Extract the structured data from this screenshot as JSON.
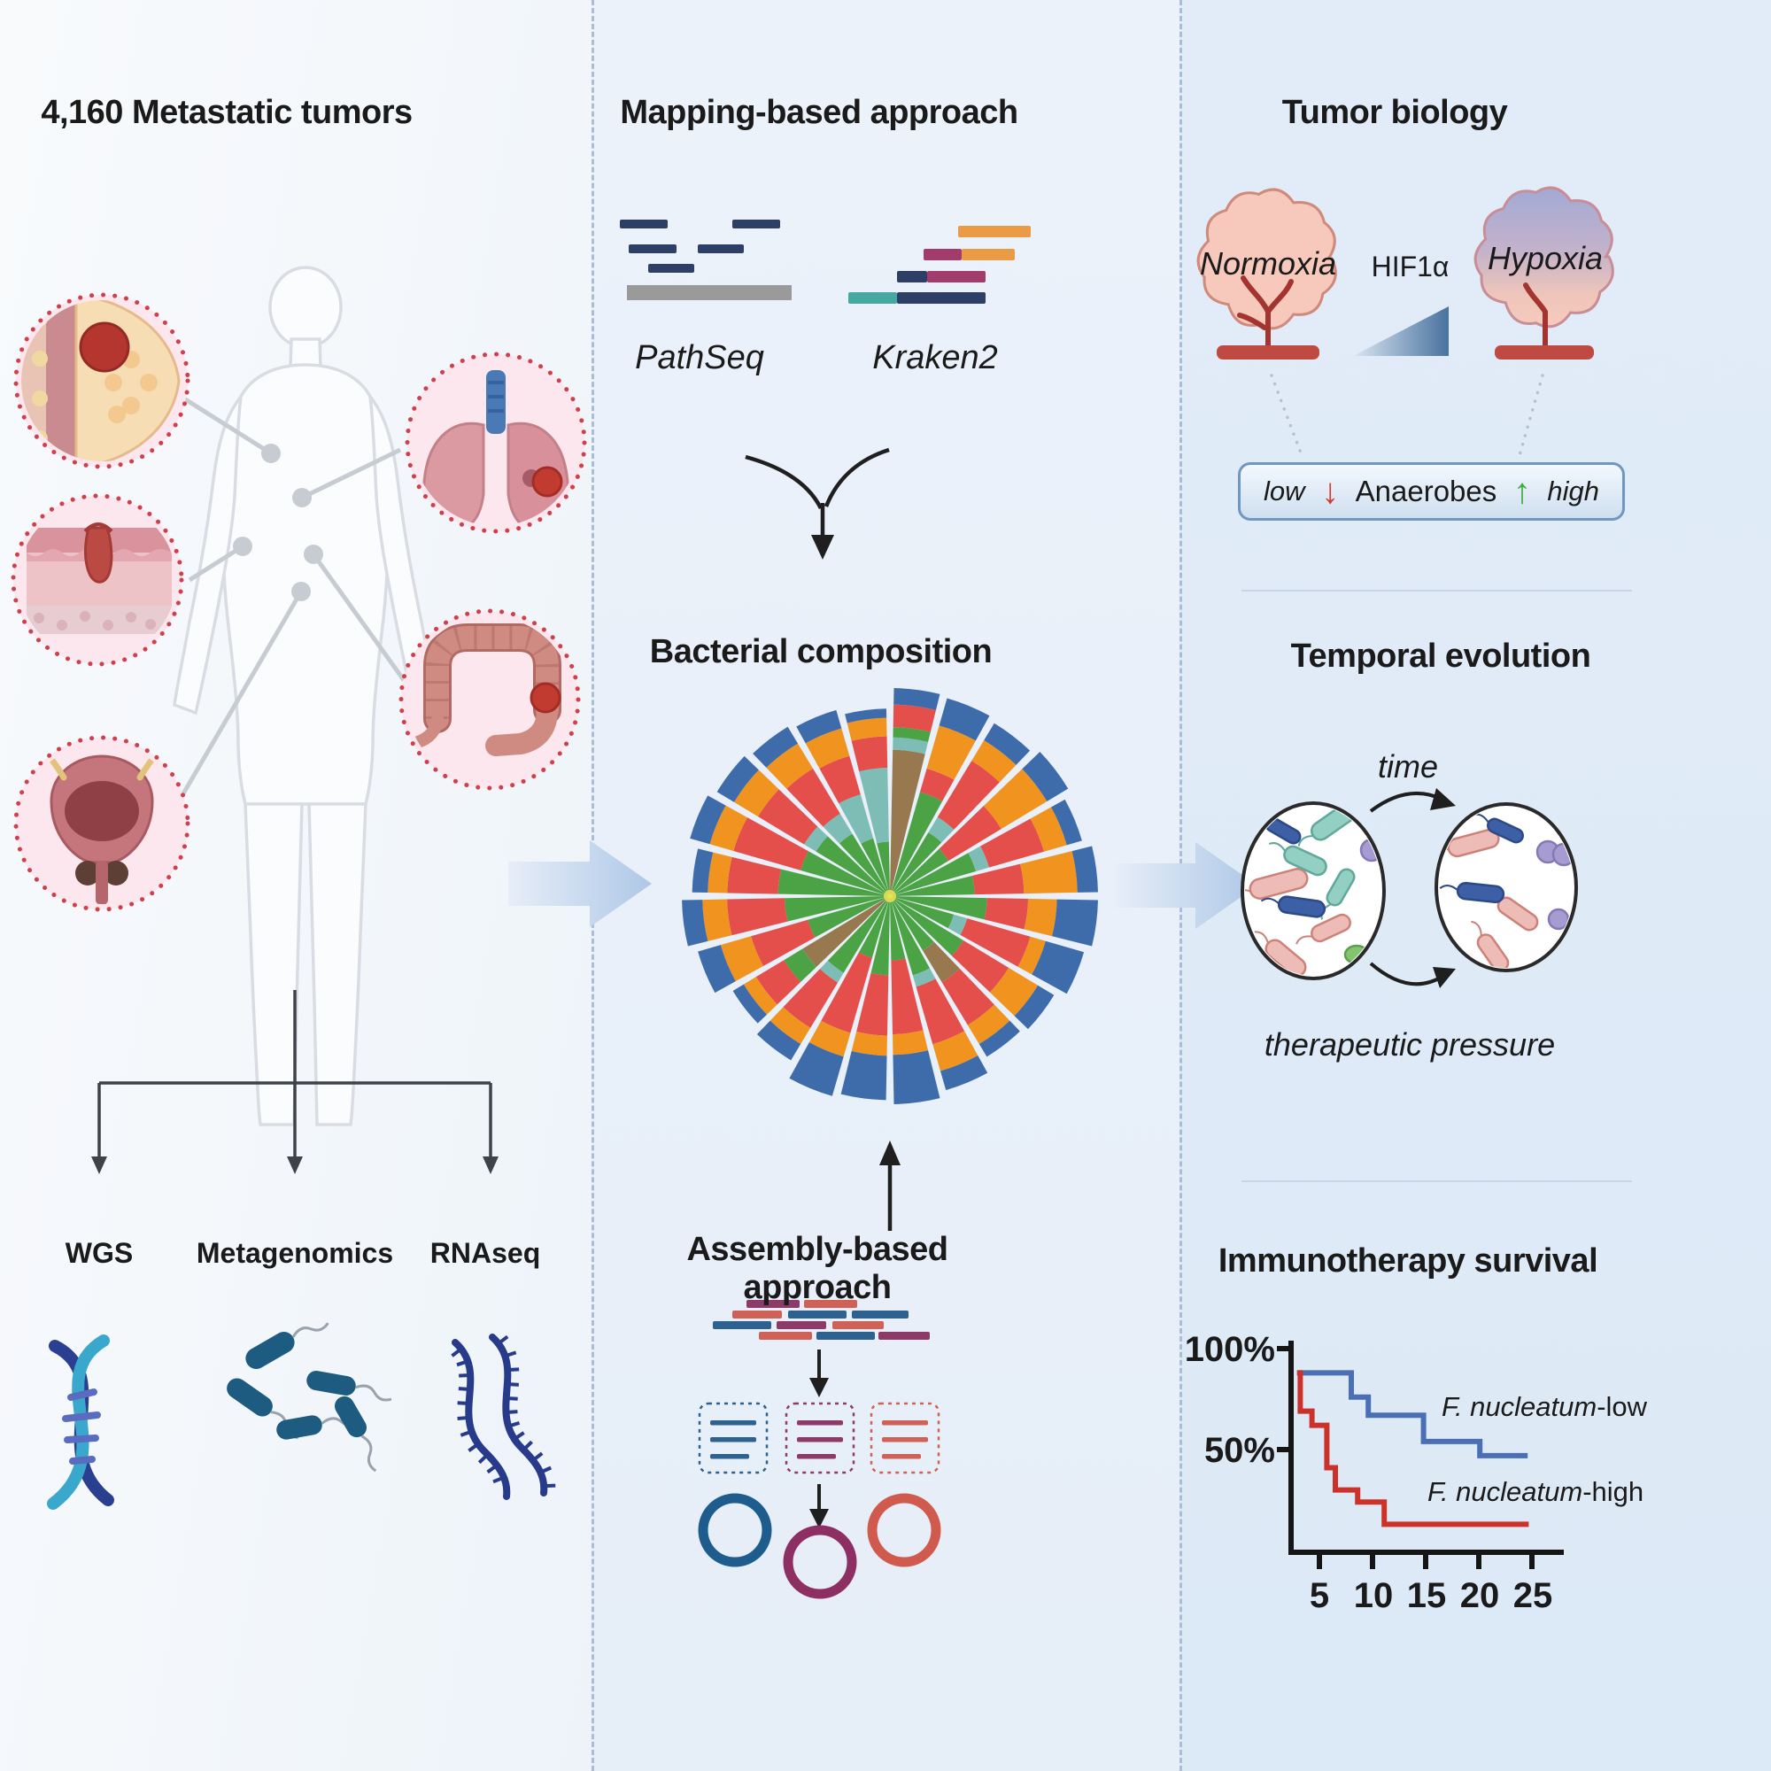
{
  "left": {
    "title": "4,160 Metastatic tumors",
    "organs": [
      {
        "name": "breast"
      },
      {
        "name": "lung"
      },
      {
        "name": "skin"
      },
      {
        "name": "colon"
      },
      {
        "name": "bladder"
      }
    ],
    "methods": [
      {
        "label": "WGS"
      },
      {
        "label": "Metagenomics"
      },
      {
        "label": "RNAseq"
      }
    ]
  },
  "middle": {
    "title": "Mapping-based approach",
    "tools": [
      {
        "label": "PathSeq"
      },
      {
        "label": "Kraken2"
      }
    ],
    "composition_title": "Bacterial composition",
    "assembly_title": "Assembly-based approach"
  },
  "right": {
    "title": "Tumor biology",
    "normoxia_label": "Normoxia",
    "hif_label": "HIF1α",
    "hypoxia_label": "Hypoxia",
    "anaerobes_low": "low",
    "anaerobes_label": "Anaerobes",
    "anaerobes_high": "high",
    "temporal_title": "Temporal evolution",
    "time_label": "time",
    "pressure_label": "therapeutic pressure",
    "survival_title": "Immunotherapy survival"
  },
  "colors": {
    "divider": "#a9bed4",
    "panel_arrow": "#b5cce8",
    "organ_circle_border": "#d0404c",
    "organ_circle_fill": "#fbe7ed",
    "km_low_color": "#4a6fb5",
    "km_high_color": "#cc3229"
  },
  "chart_data": [
    {
      "type": "bar",
      "subtype": "polar-stacked-sunburst",
      "title": "Bacterial composition",
      "legend": "none",
      "palette": {
        "g": "#4ba345",
        "r": "#e44f4b",
        "o": "#f0941f",
        "b": "#3e6cab",
        "t": "#7dbdb5",
        "n": "#97784f"
      },
      "sectors": [
        {
          "r": 1.0,
          "seg": [
            [
              "n",
              0.7
            ],
            [
              "t",
              0.06
            ],
            [
              "g",
              0.05
            ],
            [
              "r",
              0.11
            ],
            [
              "b",
              0.08
            ]
          ]
        },
        {
          "r": 0.99,
          "seg": [
            [
              "g",
              0.52
            ],
            [
              "r",
              0.12
            ],
            [
              "o",
              0.22
            ],
            [
              "b",
              0.14
            ]
          ]
        },
        {
          "r": 0.97,
          "seg": [
            [
              "g",
              0.36
            ],
            [
              "t",
              0.09
            ],
            [
              "r",
              0.33
            ],
            [
              "o",
              0.12
            ],
            [
              "b",
              0.1
            ]
          ]
        },
        {
          "r": 1.0,
          "seg": [
            [
              "g",
              0.32
            ],
            [
              "r",
              0.3
            ],
            [
              "o",
              0.26
            ],
            [
              "b",
              0.12
            ]
          ]
        },
        {
          "r": 0.96,
          "seg": [
            [
              "g",
              0.44
            ],
            [
              "t",
              0.07
            ],
            [
              "r",
              0.29
            ],
            [
              "o",
              0.12
            ],
            [
              "b",
              0.08
            ]
          ]
        },
        {
          "r": 1.0,
          "seg": [
            [
              "g",
              0.4
            ],
            [
              "r",
              0.24
            ],
            [
              "o",
              0.26
            ],
            [
              "b",
              0.1
            ]
          ]
        },
        {
          "r": 1.0,
          "seg": [
            [
              "g",
              0.46
            ],
            [
              "r",
              0.2
            ],
            [
              "o",
              0.14
            ],
            [
              "b",
              0.2
            ]
          ]
        },
        {
          "r": 0.97,
          "seg": [
            [
              "g",
              0.32
            ],
            [
              "t",
              0.07
            ],
            [
              "r",
              0.33
            ],
            [
              "o",
              0.08
            ],
            [
              "b",
              0.2
            ]
          ]
        },
        {
          "r": 0.92,
          "seg": [
            [
              "g",
              0.44
            ],
            [
              "r",
              0.28
            ],
            [
              "o",
              0.18
            ],
            [
              "b",
              0.1
            ]
          ]
        },
        {
          "r": 0.9,
          "seg": [
            [
              "g",
              0.33
            ],
            [
              "n",
              0.2
            ],
            [
              "r",
              0.27
            ],
            [
              "o",
              0.12
            ],
            [
              "b",
              0.08
            ]
          ]
        },
        {
          "r": 0.97,
          "seg": [
            [
              "g",
              0.4
            ],
            [
              "t",
              0.06
            ],
            [
              "r",
              0.3
            ],
            [
              "o",
              0.14
            ],
            [
              "b",
              0.1
            ]
          ]
        },
        {
          "r": 1.0,
          "seg": [
            [
              "g",
              0.3
            ],
            [
              "r",
              0.36
            ],
            [
              "o",
              0.1
            ],
            [
              "b",
              0.24
            ]
          ]
        },
        {
          "r": 0.98,
          "seg": [
            [
              "g",
              0.38
            ],
            [
              "r",
              0.3
            ],
            [
              "o",
              0.1
            ],
            [
              "b",
              0.22
            ]
          ]
        },
        {
          "r": 1.0,
          "seg": [
            [
              "g",
              0.3
            ],
            [
              "r",
              0.38
            ],
            [
              "o",
              0.12
            ],
            [
              "b",
              0.2
            ]
          ]
        },
        {
          "r": 0.92,
          "seg": [
            [
              "g",
              0.46
            ],
            [
              "t",
              0.06
            ],
            [
              "r",
              0.28
            ],
            [
              "o",
              0.1
            ],
            [
              "b",
              0.1
            ]
          ]
        },
        {
          "r": 0.88,
          "seg": [
            [
              "n",
              0.55
            ],
            [
              "g",
              0.12
            ],
            [
              "r",
              0.18
            ],
            [
              "o",
              0.08
            ],
            [
              "b",
              0.07
            ]
          ]
        },
        {
          "r": 0.96,
          "seg": [
            [
              "g",
              0.42
            ],
            [
              "r",
              0.3
            ],
            [
              "o",
              0.16
            ],
            [
              "b",
              0.12
            ]
          ]
        },
        {
          "r": 1.0,
          "seg": [
            [
              "g",
              0.5
            ],
            [
              "r",
              0.28
            ],
            [
              "o",
              0.12
            ],
            [
              "b",
              0.1
            ]
          ]
        },
        {
          "r": 0.95,
          "seg": [
            [
              "g",
              0.56
            ],
            [
              "r",
              0.26
            ],
            [
              "o",
              0.1
            ],
            [
              "b",
              0.08
            ]
          ]
        },
        {
          "r": 1.0,
          "seg": [
            [
              "g",
              0.44
            ],
            [
              "r",
              0.34
            ],
            [
              "o",
              0.12
            ],
            [
              "b",
              0.1
            ]
          ]
        },
        {
          "r": 0.97,
          "seg": [
            [
              "g",
              0.42
            ],
            [
              "t",
              0.07
            ],
            [
              "r",
              0.27
            ],
            [
              "o",
              0.14
            ],
            [
              "b",
              0.1
            ]
          ]
        },
        {
          "r": 0.95,
          "seg": [
            [
              "g",
              0.36
            ],
            [
              "t",
              0.12
            ],
            [
              "r",
              0.27
            ],
            [
              "o",
              0.15
            ],
            [
              "b",
              0.1
            ]
          ]
        },
        {
          "r": 0.93,
          "seg": [
            [
              "g",
              0.3
            ],
            [
              "t",
              0.24
            ],
            [
              "r",
              0.21
            ],
            [
              "o",
              0.15
            ],
            [
              "b",
              0.1
            ]
          ]
        },
        {
          "r": 0.9,
          "seg": [
            [
              "g",
              0.28
            ],
            [
              "t",
              0.4
            ],
            [
              "r",
              0.17
            ],
            [
              "o",
              0.1
            ],
            [
              "b",
              0.05
            ]
          ]
        }
      ]
    },
    {
      "type": "line",
      "subtype": "kaplan-meier-step",
      "title": "Immunotherapy survival",
      "xlabel": "",
      "ylabel": "",
      "y_tick_labels": [
        "100%",
        "50%"
      ],
      "y_tick_values": [
        100,
        50
      ],
      "x_ticks": [
        5,
        10,
        15,
        20,
        25
      ],
      "xlim": [
        2,
        26
      ],
      "ylim": [
        0,
        100
      ],
      "grid": false,
      "legend_position": "inline-annotations",
      "series": [
        {
          "name": "F. nucleatum-low",
          "name_italic": "F. nucleatum",
          "name_suffix": "-low",
          "color": "#4a6fb5",
          "points": [
            [
              2.9,
              88
            ],
            [
              8,
              88
            ],
            [
              8,
              76
            ],
            [
              9.6,
              76
            ],
            [
              9.6,
              67
            ],
            [
              14.8,
              67
            ],
            [
              14.8,
              54
            ],
            [
              20.1,
              54
            ],
            [
              20.1,
              47
            ],
            [
              24.6,
              47
            ]
          ]
        },
        {
          "name": "F. nucleatum-high",
          "name_italic": "F. nucleatum",
          "name_suffix": "-high",
          "color": "#cc3229",
          "points": [
            [
              2.9,
              88
            ],
            [
              3.2,
              88
            ],
            [
              3.2,
              69
            ],
            [
              4.3,
              69
            ],
            [
              4.3,
              62
            ],
            [
              5.7,
              62
            ],
            [
              5.7,
              41
            ],
            [
              6.5,
              41
            ],
            [
              6.5,
              30
            ],
            [
              8.6,
              30
            ],
            [
              8.6,
              24
            ],
            [
              11.1,
              24
            ],
            [
              11.1,
              13
            ],
            [
              24.7,
              13
            ]
          ]
        }
      ]
    }
  ]
}
